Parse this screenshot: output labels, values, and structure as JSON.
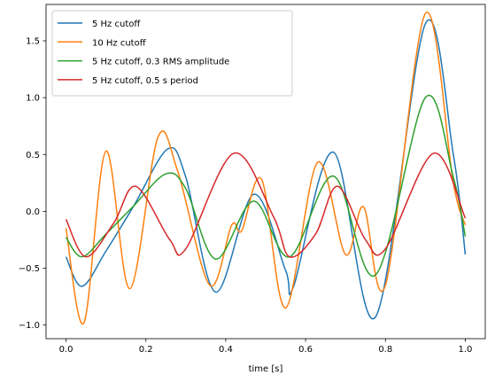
{
  "chart_data": {
    "type": "line",
    "title": "",
    "xlabel": "time [s]",
    "ylabel": "",
    "xlim": [
      -0.05,
      1.05
    ],
    "ylim": [
      -1.12,
      1.82
    ],
    "xticks": [
      0.0,
      0.2,
      0.4,
      0.6,
      0.8,
      1.0
    ],
    "xtick_labels": [
      "0.0",
      "0.2",
      "0.4",
      "0.6",
      "0.8",
      "1.0"
    ],
    "yticks": [
      -1.0,
      -0.5,
      0.0,
      0.5,
      1.0,
      1.5
    ],
    "ytick_labels": [
      "−1.0",
      "−0.5",
      "0.0",
      "0.5",
      "1.0",
      "1.5"
    ],
    "grid": false,
    "legend_position": "top-left",
    "series": [
      {
        "name": "5 Hz cutoff",
        "color": "#1f77b4",
        "points": [
          [
            0.0,
            -0.4
          ],
          [
            0.04,
            -0.66
          ],
          [
            0.1,
            -0.35
          ],
          [
            0.17,
            0.05
          ],
          [
            0.255,
            0.55
          ],
          [
            0.3,
            0.3
          ],
          [
            0.375,
            -0.71
          ],
          [
            0.47,
            0.15
          ],
          [
            0.55,
            -0.52
          ],
          [
            0.57,
            -0.66
          ],
          [
            0.67,
            0.52
          ],
          [
            0.775,
            -0.93
          ],
          [
            0.9,
            1.65
          ],
          [
            0.97,
            0.5
          ],
          [
            1.0,
            -0.38
          ]
        ]
      },
      {
        "name": "10 Hz cutoff",
        "color": "#ff7f0e",
        "points": [
          [
            0.0,
            -0.15
          ],
          [
            0.045,
            -0.98
          ],
          [
            0.1,
            0.53
          ],
          [
            0.16,
            -0.68
          ],
          [
            0.23,
            0.65
          ],
          [
            0.28,
            0.35
          ],
          [
            0.36,
            -0.65
          ],
          [
            0.415,
            -0.12
          ],
          [
            0.44,
            -0.17
          ],
          [
            0.49,
            0.28
          ],
          [
            0.55,
            -0.85
          ],
          [
            0.63,
            0.43
          ],
          [
            0.7,
            -0.38
          ],
          [
            0.745,
            0.04
          ],
          [
            0.8,
            -0.65
          ],
          [
            0.9,
            1.74
          ],
          [
            0.97,
            0.25
          ],
          [
            1.0,
            -0.12
          ]
        ]
      },
      {
        "name": "5 Hz cutoff, 0.3 RMS amplitude",
        "color": "#2ca02c",
        "points": [
          [
            0.0,
            -0.23
          ],
          [
            0.04,
            -0.4
          ],
          [
            0.1,
            -0.2
          ],
          [
            0.17,
            0.05
          ],
          [
            0.25,
            0.33
          ],
          [
            0.3,
            0.2
          ],
          [
            0.375,
            -0.42
          ],
          [
            0.47,
            0.09
          ],
          [
            0.56,
            -0.4
          ],
          [
            0.67,
            0.31
          ],
          [
            0.775,
            -0.56
          ],
          [
            0.9,
            1.0
          ],
          [
            0.97,
            0.3
          ],
          [
            1.0,
            -0.22
          ]
        ]
      },
      {
        "name": "5 Hz cutoff, 0.5 s period",
        "color": "#d62728",
        "points": [
          [
            0.0,
            -0.07
          ],
          [
            0.05,
            -0.4
          ],
          [
            0.12,
            -0.1
          ],
          [
            0.175,
            0.22
          ],
          [
            0.26,
            -0.25
          ],
          [
            0.3,
            -0.33
          ],
          [
            0.42,
            0.51
          ],
          [
            0.52,
            -0.05
          ],
          [
            0.56,
            -0.4
          ],
          [
            0.625,
            -0.2
          ],
          [
            0.68,
            0.22
          ],
          [
            0.75,
            -0.25
          ],
          [
            0.8,
            -0.33
          ],
          [
            0.92,
            0.51
          ],
          [
            1.0,
            -0.06
          ]
        ]
      }
    ]
  }
}
